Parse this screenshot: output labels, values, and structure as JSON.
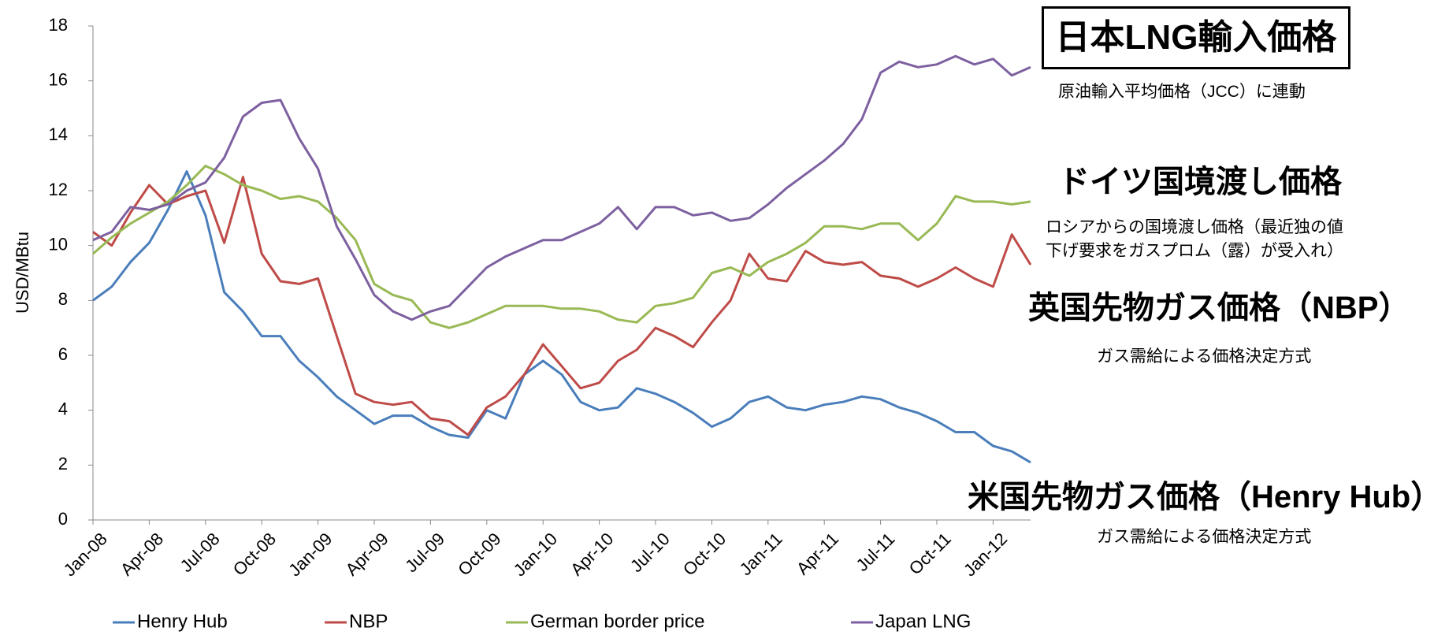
{
  "chart_data": {
    "type": "line",
    "y_label": "USD/MBtu",
    "categories": [
      "Jan-08",
      null,
      null,
      "Apr-08",
      null,
      null,
      "Jul-08",
      null,
      null,
      "Oct-08",
      null,
      null,
      "Jan-09",
      null,
      null,
      "Apr-09",
      null,
      null,
      "Jul-09",
      null,
      null,
      "Oct-09",
      null,
      null,
      "Jan-10",
      null,
      null,
      "Apr-10",
      null,
      null,
      "Jul-10",
      null,
      null,
      "Oct-10",
      null,
      null,
      "Jan-11",
      null,
      null,
      "Apr-11",
      null,
      null,
      "Jul-11",
      null,
      null,
      "Oct-11",
      null,
      null,
      "Jan-12",
      null,
      null
    ],
    "ylim": [
      0,
      18
    ],
    "yticks": [
      0,
      2,
      4,
      6,
      8,
      10,
      12,
      14,
      16,
      18
    ],
    "series": [
      {
        "name": "Henry Hub",
        "color": "#4a7ebb",
        "values": [
          8.0,
          8.5,
          9.4,
          10.1,
          11.3,
          12.7,
          11.1,
          8.3,
          7.6,
          6.7,
          6.7,
          5.8,
          5.2,
          4.5,
          4.0,
          3.5,
          3.8,
          3.8,
          3.4,
          3.1,
          3.0,
          4.0,
          3.7,
          5.3,
          5.8,
          5.3,
          4.3,
          4.0,
          4.1,
          4.8,
          4.6,
          4.3,
          3.9,
          3.4,
          3.7,
          4.3,
          4.5,
          4.1,
          4.0,
          4.2,
          4.3,
          4.5,
          4.4,
          4.1,
          3.9,
          3.6,
          3.2,
          3.2,
          2.7,
          2.5,
          2.1
        ]
      },
      {
        "name": "NBP",
        "color": "#be4b48",
        "values": [
          10.5,
          10.0,
          11.2,
          12.2,
          11.5,
          11.8,
          12.0,
          10.1,
          12.5,
          9.7,
          8.7,
          8.6,
          8.8,
          6.7,
          4.6,
          4.3,
          4.2,
          4.3,
          3.7,
          3.6,
          3.1,
          4.1,
          4.5,
          5.3,
          6.4,
          5.6,
          4.8,
          5.0,
          5.8,
          6.2,
          7.0,
          6.7,
          6.3,
          7.2,
          8.0,
          9.7,
          8.8,
          8.7,
          9.8,
          9.4,
          9.3,
          9.4,
          8.9,
          8.8,
          8.5,
          8.8,
          9.2,
          8.8,
          8.5,
          10.4,
          9.3
        ]
      },
      {
        "name": "German border price",
        "color": "#98b954",
        "values": [
          9.7,
          10.3,
          10.8,
          11.2,
          11.6,
          12.2,
          12.9,
          12.6,
          12.2,
          12.0,
          11.7,
          11.8,
          11.6,
          11.0,
          10.2,
          8.6,
          8.2,
          8.0,
          7.2,
          7.0,
          7.2,
          7.5,
          7.8,
          7.8,
          7.8,
          7.7,
          7.7,
          7.6,
          7.3,
          7.2,
          7.8,
          7.9,
          8.1,
          9.0,
          9.2,
          8.9,
          9.4,
          9.7,
          10.1,
          10.7,
          10.7,
          10.6,
          10.8,
          10.8,
          10.2,
          10.8,
          11.8,
          11.6,
          11.6,
          11.5,
          11.6
        ]
      },
      {
        "name": "Japan LNG",
        "color": "#7d60a0",
        "values": [
          10.2,
          10.5,
          11.4,
          11.3,
          11.5,
          12.0,
          12.3,
          13.2,
          14.7,
          15.2,
          15.3,
          13.9,
          12.8,
          10.7,
          9.5,
          8.2,
          7.6,
          7.3,
          7.6,
          7.8,
          8.5,
          9.2,
          9.6,
          9.9,
          10.2,
          10.2,
          10.5,
          10.8,
          11.4,
          10.6,
          11.4,
          11.4,
          11.1,
          11.2,
          10.9,
          11.0,
          11.5,
          12.1,
          12.6,
          13.1,
          13.7,
          14.6,
          16.3,
          16.7,
          16.5,
          16.6,
          16.9,
          16.6,
          16.8,
          16.2,
          16.5
        ]
      }
    ],
    "annotations": [
      "日本LNG輸入価格",
      "原油輸入平均価格（JCC）に連動",
      "ドイツ国境渡し価格",
      "ロシアからの国境渡し価格（最近独の値",
      "下げ要求をガスプロム（露）が受入れ）",
      "英国先物ガス価格（NBP）",
      "ガス需給による価格決定方式",
      "米国先物ガス価格（Henry Hub）",
      "ガス需給による価格決定方式"
    ]
  }
}
